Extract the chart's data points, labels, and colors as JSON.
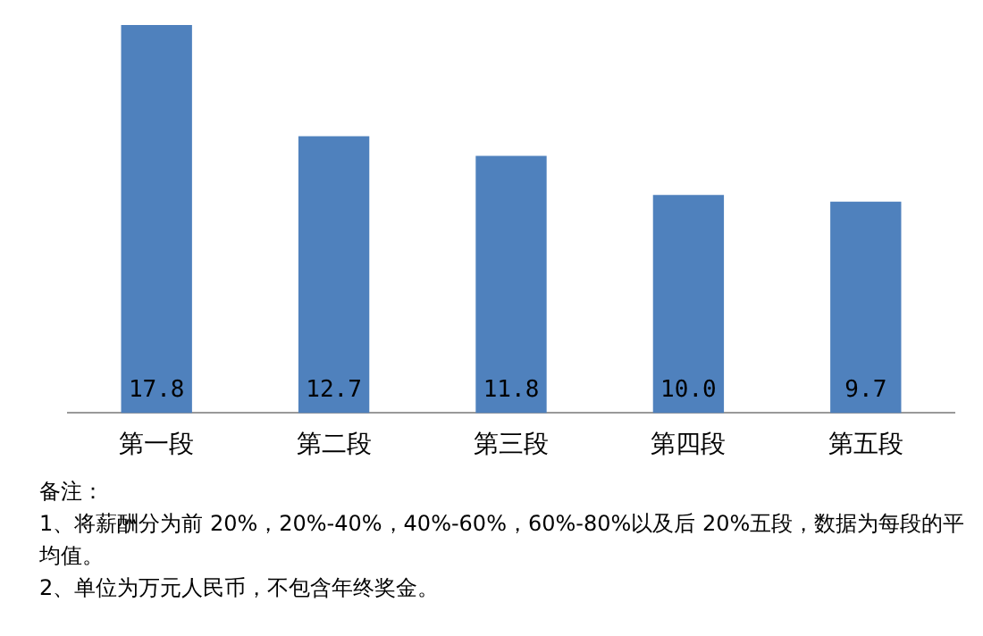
{
  "chart_data": {
    "type": "bar",
    "categories": [
      "第一段",
      "第二段",
      "第三段",
      "第四段",
      "第五段"
    ],
    "values": [
      17.8,
      12.7,
      11.8,
      10.0,
      9.7
    ],
    "value_labels": [
      "17.8",
      "12.7",
      "11.8",
      "10.0",
      "9.7"
    ],
    "color": "#4f81bd",
    "grid": false,
    "legend": false,
    "annotations": [
      "备注：",
      "1、将薪酬分为前 20%，20%-40%，40%-60%，60%-80%以及后 20%五段，数据为每段的平均值。",
      "2、单位为万元人民币，不包含年终奖金。"
    ]
  }
}
